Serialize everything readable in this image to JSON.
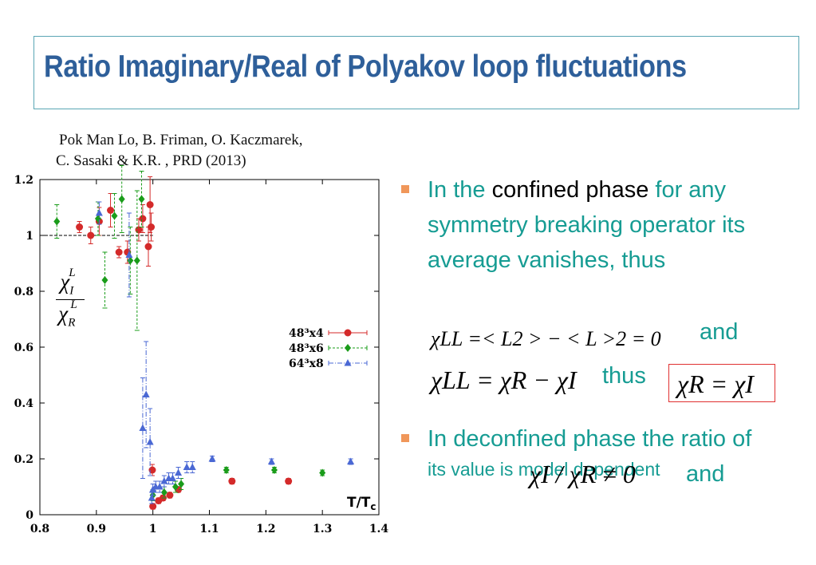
{
  "title": "Ratio Imaginary/Real of Polyakov loop fluctuations",
  "citation": {
    "line1": "Pok Man Lo, B. Friman, O. Kaczmarek,",
    "line2": "C. Sasaki & K.R. , PRD (2013)"
  },
  "bullets": {
    "b1_pre": "In the ",
    "b1_highlight": "confined phase",
    "b1_post": " for any symmetry breaking operator its average vanishes, thus",
    "eq1": "χLL =< L2 > − < L >2 = 0",
    "and1": "and",
    "eq2": "χLL = χR − χI",
    "thus": "thus",
    "eq3": "χR = χI",
    "b2_main": "In deconfined phase the ratio of",
    "eq4": "χI / χR ≠ 0",
    "and2": "and",
    "b2_small": "its value is model dependent"
  },
  "colors": {
    "title": "#2e5f9a",
    "teal": "#169c93",
    "bullet": "#f0975a",
    "red_series": "#d42a2a",
    "green_series": "#1a9c1a",
    "blue_series": "#4a68d4"
  },
  "chart_data": {
    "type": "scatter",
    "xlabel": "T/Tc",
    "ylabel": "χI^L / χR^L",
    "xlim": [
      0.8,
      1.4
    ],
    "ylim": [
      0,
      1.2
    ],
    "xticks": [
      "0.8",
      "0.9",
      "1",
      "1.1",
      "1.2",
      "1.3",
      "1.4"
    ],
    "yticks": [
      "0",
      "0.2",
      "0.4",
      "0.6",
      "0.8",
      "1",
      "1.2"
    ],
    "reference_line_y": 1,
    "legend_position": "right-middle",
    "series": [
      {
        "name": "48³x4",
        "marker": "circle",
        "color": "#d42a2a",
        "points": [
          {
            "x": 0.87,
            "y": 1.03,
            "err": 0.02
          },
          {
            "x": 0.89,
            "y": 1.0,
            "err": 0.03
          },
          {
            "x": 0.905,
            "y": 1.05,
            "err": 0.05
          },
          {
            "x": 0.925,
            "y": 1.09,
            "err": 0.06
          },
          {
            "x": 0.94,
            "y": 0.94,
            "err": 0.02
          },
          {
            "x": 0.955,
            "y": 0.94,
            "err": 0.04
          },
          {
            "x": 0.975,
            "y": 1.02,
            "err": 0.04
          },
          {
            "x": 0.982,
            "y": 1.06,
            "err": 0.05
          },
          {
            "x": 0.992,
            "y": 0.96,
            "err": 0.07
          },
          {
            "x": 0.995,
            "y": 1.11,
            "err": 0.1
          },
          {
            "x": 0.997,
            "y": 1.03,
            "err": 0.05
          },
          {
            "x": 0.999,
            "y": 0.16,
            "err": 0.02
          },
          {
            "x": 1.0,
            "y": 0.03,
            "err": 0.01
          },
          {
            "x": 1.01,
            "y": 0.05,
            "err": 0.01
          },
          {
            "x": 1.018,
            "y": 0.06,
            "err": 0.01
          },
          {
            "x": 1.03,
            "y": 0.07,
            "err": 0.01
          },
          {
            "x": 1.045,
            "y": 0.09,
            "err": 0.01
          },
          {
            "x": 1.14,
            "y": 0.12,
            "err": 0.01
          },
          {
            "x": 1.24,
            "y": 0.12,
            "err": 0.01
          }
        ]
      },
      {
        "name": "48³x6",
        "marker": "diamond",
        "color": "#1a9c1a",
        "points": [
          {
            "x": 0.83,
            "y": 1.05,
            "err": 0.06
          },
          {
            "x": 0.903,
            "y": 1.06,
            "err": 0.06
          },
          {
            "x": 0.915,
            "y": 0.84,
            "err": 0.1
          },
          {
            "x": 0.932,
            "y": 1.07,
            "err": 0.08
          },
          {
            "x": 0.945,
            "y": 1.13,
            "err": 0.12
          },
          {
            "x": 0.96,
            "y": 0.91,
            "err": 0.12
          },
          {
            "x": 0.972,
            "y": 0.91,
            "err": 0.25
          },
          {
            "x": 0.98,
            "y": 1.13,
            "err": 0.1
          },
          {
            "x": 1.0,
            "y": 0.07,
            "err": 0.02
          },
          {
            "x": 1.02,
            "y": 0.08,
            "err": 0.02
          },
          {
            "x": 1.04,
            "y": 0.1,
            "err": 0.02
          },
          {
            "x": 1.05,
            "y": 0.11,
            "err": 0.02
          },
          {
            "x": 1.13,
            "y": 0.16,
            "err": 0.01
          },
          {
            "x": 1.215,
            "y": 0.16,
            "err": 0.01
          },
          {
            "x": 1.3,
            "y": 0.15,
            "err": 0.01
          }
        ]
      },
      {
        "name": "64³x8",
        "marker": "triangle",
        "color": "#4a68d4",
        "points": [
          {
            "x": 0.905,
            "y": 1.08,
            "err": 0.04
          },
          {
            "x": 0.958,
            "y": 0.93,
            "err": 0.15
          },
          {
            "x": 0.982,
            "y": 0.31,
            "err": 0.18
          },
          {
            "x": 0.988,
            "y": 0.43,
            "err": 0.19
          },
          {
            "x": 0.995,
            "y": 0.26,
            "err": 0.12
          },
          {
            "x": 0.998,
            "y": 0.06,
            "err": 0.02
          },
          {
            "x": 1.0,
            "y": 0.09,
            "err": 0.02
          },
          {
            "x": 1.005,
            "y": 0.1,
            "err": 0.02
          },
          {
            "x": 1.012,
            "y": 0.1,
            "err": 0.02
          },
          {
            "x": 1.02,
            "y": 0.12,
            "err": 0.02
          },
          {
            "x": 1.028,
            "y": 0.13,
            "err": 0.02
          },
          {
            "x": 1.035,
            "y": 0.13,
            "err": 0.02
          },
          {
            "x": 1.045,
            "y": 0.15,
            "err": 0.02
          },
          {
            "x": 1.06,
            "y": 0.17,
            "err": 0.02
          },
          {
            "x": 1.07,
            "y": 0.17,
            "err": 0.02
          },
          {
            "x": 1.105,
            "y": 0.2,
            "err": 0.01
          },
          {
            "x": 1.21,
            "y": 0.19,
            "err": 0.01
          },
          {
            "x": 1.35,
            "y": 0.19,
            "err": 0.01
          }
        ]
      }
    ]
  }
}
